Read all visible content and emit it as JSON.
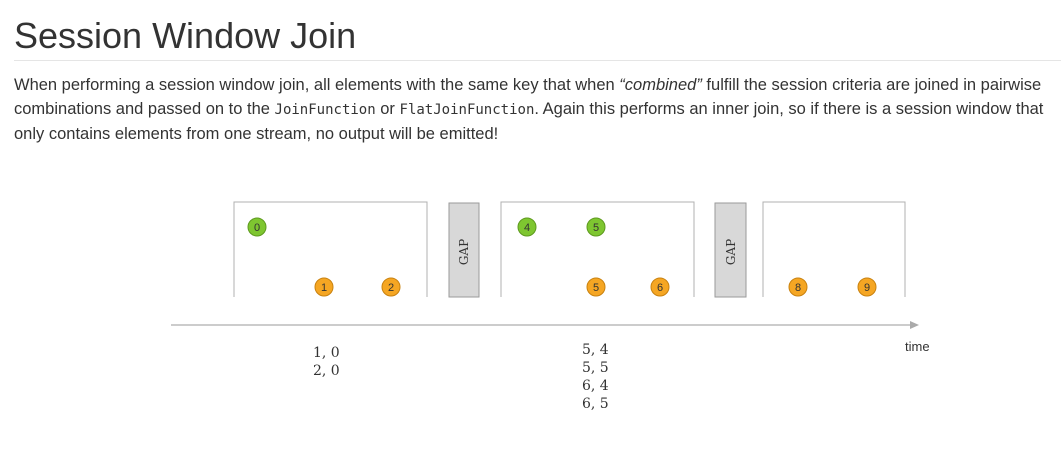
{
  "heading": "Session Window Join",
  "paragraph": {
    "part1": "When performing a session window join, all elements with the same key that when ",
    "emphasis": "“combined”",
    "part2": " fulfill the session criteria are joined in pairwise combinations and passed on to the ",
    "code1": "JoinFunction",
    "part3": " or ",
    "code2": "FlatJoinFunction",
    "part4": ". Again this performs an inner join, so if there is a session window that only contains elements from one stream, no output will be emitted!"
  },
  "diagram": {
    "gap_label": "GAP",
    "time_label": "time",
    "green_color": "#7ec630",
    "orange_color": "#f5a623",
    "window1": {
      "green": [
        "0"
      ],
      "orange": [
        "1",
        "2"
      ],
      "results": [
        "1, 0",
        "2, 0"
      ]
    },
    "window2": {
      "green": [
        "4",
        "5"
      ],
      "orange": [
        "5",
        "6"
      ],
      "results": [
        "5, 4",
        "5, 5",
        "6, 4",
        "6, 5"
      ]
    },
    "window3": {
      "green": [],
      "orange": [
        "8",
        "9"
      ],
      "results": []
    }
  }
}
